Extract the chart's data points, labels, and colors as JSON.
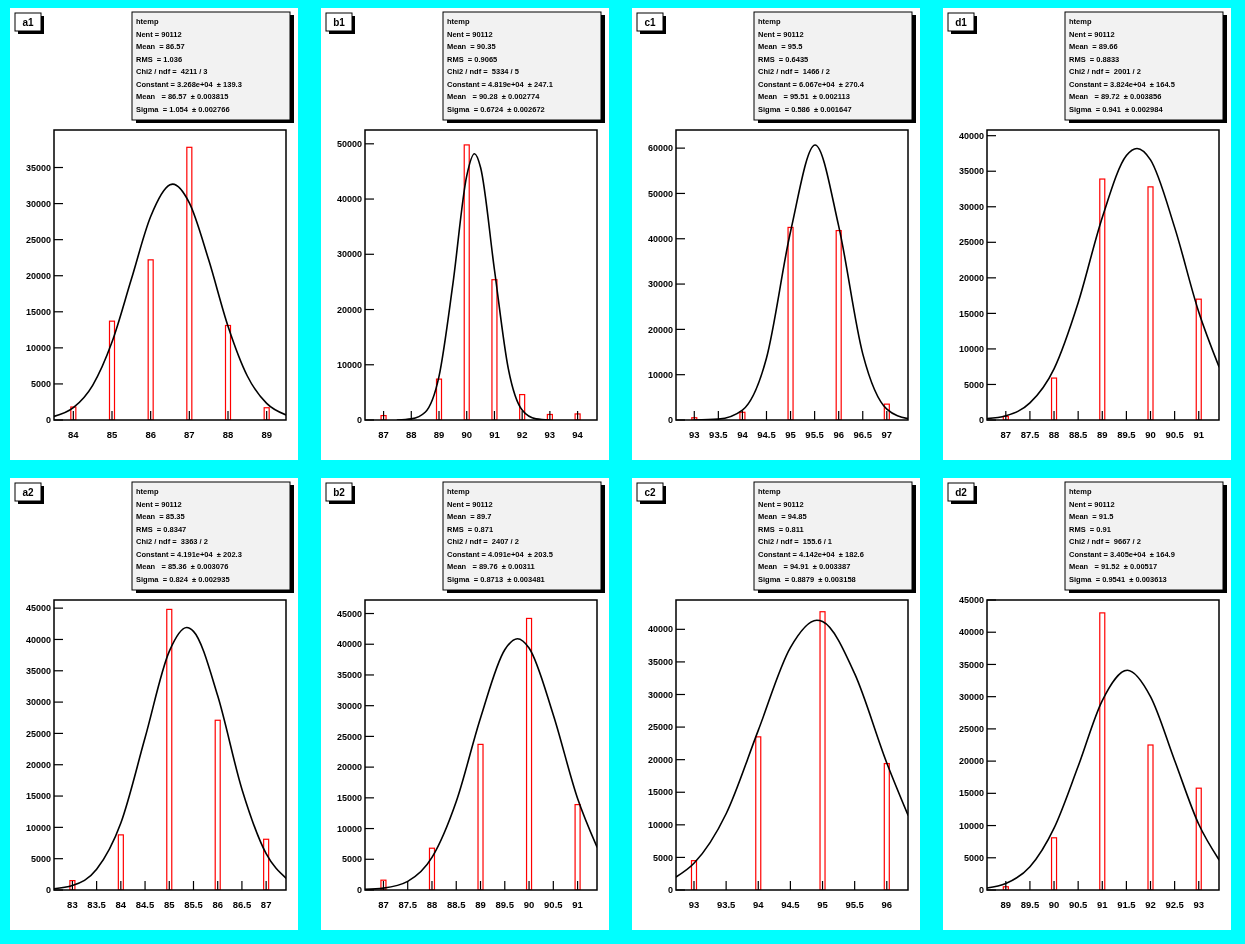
{
  "chart_data": [
    {
      "type": "bar",
      "title": "a1",
      "xlim": [
        83.5,
        89.5
      ],
      "xticks": [
        84,
        85,
        86,
        87,
        88,
        89
      ],
      "ylim": [
        0,
        40200
      ],
      "yticks": [
        0,
        5000,
        10000,
        15000,
        20000,
        25000,
        30000,
        35000
      ],
      "annotations": [
        "htemp",
        "Nent = 90112",
        "Mean  = 86.57",
        "RMS  = 1.036",
        "Chi2 / ndf =  4211 / 3",
        "Constant = 3.268e+04  ± 139.3",
        "Mean   = 86.57  ± 0.003815",
        "Sigma  = 1.054  ± 0.002766"
      ],
      "series": [
        {
          "type": "bar",
          "color": "#ff0000",
          "x": [
            84,
            85,
            86,
            87,
            88,
            89
          ],
          "values": [
            1800,
            13700,
            22200,
            37800,
            13100,
            1700
          ]
        },
        {
          "type": "line",
          "color": "#000000",
          "x": [
            83.5,
            84,
            84.5,
            85,
            85.5,
            86,
            86.5,
            86.57,
            87,
            87.5,
            88,
            88.5,
            89,
            89.5
          ],
          "values": [
            500,
            1700,
            4800,
            10800,
            19500,
            28200,
            32600,
            32700,
            30100,
            22200,
            13000,
            6100,
            2300,
            700
          ]
        }
      ]
    },
    {
      "type": "bar",
      "title": "b1",
      "xlim": [
        86.33,
        94.7
      ],
      "xticks": [
        87,
        88,
        89,
        90,
        91,
        92,
        93,
        94
      ],
      "ylim": [
        0,
        52500
      ],
      "yticks": [
        0,
        10000,
        20000,
        30000,
        40000,
        50000
      ],
      "annotations": [
        "htemp",
        "Nent = 90112",
        "Mean  = 90.35",
        "RMS  = 0.9065",
        "Chi2 / ndf =  5334 / 5",
        "Constant = 4.819e+04  ± 247.1",
        "Mean   = 90.28  ± 0.002774",
        "Sigma  = 0.6724  ± 0.002672"
      ],
      "series": [
        {
          "type": "bar",
          "color": "#ff0000",
          "x": [
            87,
            89,
            90,
            91,
            92,
            93,
            94
          ],
          "values": [
            800,
            7400,
            49800,
            25400,
            4600,
            1000,
            1100
          ]
        },
        {
          "type": "line",
          "color": "#000000",
          "x": [
            87.5,
            88,
            88.5,
            89,
            89.5,
            90,
            90.28,
            90.5,
            91,
            91.5,
            92,
            92.5,
            93
          ],
          "values": [
            0,
            200,
            1400,
            7900,
            24600,
            44200,
            48200,
            45700,
            27200,
            9300,
            1800,
            200,
            0
          ]
        }
      ]
    },
    {
      "type": "bar",
      "title": "c1",
      "xlim": [
        92.62,
        97.44
      ],
      "xticks": [
        93,
        93.5,
        94,
        94.5,
        95,
        95.5,
        96,
        96.5,
        97
      ],
      "ylim": [
        0,
        64000
      ],
      "yticks": [
        0,
        10000,
        20000,
        30000,
        40000,
        50000,
        60000
      ],
      "annotations": [
        "htemp",
        "Nent = 90112",
        "Mean  = 95.5",
        "RMS  = 0.6435",
        "Chi2 / ndf =  1466 / 2",
        "Constant = 6.067e+04  ± 270.4",
        "Mean   = 95.51  ± 0.002113",
        "Sigma  = 0.586  ± 0.001647"
      ],
      "series": [
        {
          "type": "bar",
          "color": "#ff0000",
          "x": [
            93,
            94,
            95,
            96,
            97
          ],
          "values": [
            500,
            1700,
            42500,
            41800,
            3500
          ]
        },
        {
          "type": "line",
          "color": "#000000",
          "x": [
            93,
            93.5,
            94,
            94.5,
            95,
            95.51,
            96,
            96.5,
            97,
            97.44
          ],
          "values": [
            0,
            200,
            2200,
            13700,
            41600,
            60700,
            42800,
            14600,
            2400,
            300
          ]
        }
      ]
    },
    {
      "type": "bar",
      "title": "d1",
      "xlim": [
        86.61,
        91.42
      ],
      "xticks": [
        87,
        87.5,
        88,
        88.5,
        89,
        89.5,
        90,
        90.5,
        91
      ],
      "ylim": [
        0,
        40800
      ],
      "yticks": [
        0,
        5000,
        10000,
        15000,
        20000,
        25000,
        30000,
        35000,
        40000
      ],
      "annotations": [
        "htemp",
        "Nent = 90112",
        "Mean  = 89.66",
        "RMS  = 0.8833",
        "Chi2 / ndf =  2001 / 2",
        "Constant = 3.824e+04  ± 164.5",
        "Mean   = 89.72  ± 0.003856",
        "Sigma  = 0.941  ± 0.002984"
      ],
      "series": [
        {
          "type": "bar",
          "color": "#ff0000",
          "x": [
            87,
            88,
            89,
            90,
            91
          ],
          "values": [
            500,
            5900,
            33900,
            32800,
            17000
          ]
        },
        {
          "type": "line",
          "color": "#000000",
          "x": [
            86.61,
            87,
            87.5,
            88,
            88.5,
            89,
            89.5,
            89.72,
            90,
            90.5,
            91,
            91.42
          ],
          "values": [
            200,
            600,
            2400,
            7200,
            16500,
            28500,
            37200,
            38200,
            36600,
            27100,
            15200,
            7500
          ]
        }
      ]
    },
    {
      "type": "bar",
      "title": "a2",
      "xlim": [
        82.62,
        87.41
      ],
      "xticks": [
        83,
        83.5,
        84,
        84.5,
        85,
        85.5,
        86,
        86.5,
        87
      ],
      "ylim": [
        0,
        46300
      ],
      "yticks": [
        0,
        5000,
        10000,
        15000,
        20000,
        25000,
        30000,
        35000,
        40000,
        45000
      ],
      "annotations": [
        "htemp",
        "Nent = 90112",
        "Mean  = 85.35",
        "RMS  = 0.8347",
        "Chi2 / ndf =  3363 / 2",
        "Constant = 4.191e+04  ± 202.3",
        "Mean   = 85.36  ± 0.003076",
        "Sigma  = 0.824  ± 0.002935"
      ],
      "series": [
        {
          "type": "bar",
          "color": "#ff0000",
          "x": [
            83,
            84,
            85,
            86,
            87
          ],
          "values": [
            1500,
            8800,
            44800,
            27100,
            8100
          ]
        },
        {
          "type": "line",
          "color": "#000000",
          "x": [
            82.62,
            83,
            83.5,
            84,
            84.5,
            85,
            85.36,
            85.5,
            86,
            86.5,
            87,
            87.41
          ],
          "values": [
            200,
            700,
            3300,
            10700,
            24300,
            38100,
            41900,
            41300,
            31000,
            16100,
            5800,
            1900
          ]
        }
      ]
    },
    {
      "type": "bar",
      "title": "b2",
      "xlim": [
        86.62,
        91.4
      ],
      "xticks": [
        87,
        87.5,
        88,
        88.5,
        89,
        89.5,
        90,
        90.5,
        91
      ],
      "ylim": [
        0,
        47200
      ],
      "yticks": [
        0,
        5000,
        10000,
        15000,
        20000,
        25000,
        30000,
        35000,
        40000,
        45000
      ],
      "annotations": [
        "htemp",
        "Nent = 90112",
        "Mean  = 89.7",
        "RMS  = 0.871",
        "Chi2 / ndf =  2407 / 2",
        "Constant = 4.091e+04  ± 203.5",
        "Mean   = 89.76  ± 0.00311",
        "Sigma  = 0.8713  ± 0.003481"
      ],
      "series": [
        {
          "type": "bar",
          "color": "#ff0000",
          "x": [
            87,
            88,
            89,
            90,
            91
          ],
          "values": [
            1600,
            6800,
            23700,
            44200,
            13900
          ]
        },
        {
          "type": "line",
          "color": "#000000",
          "x": [
            86.62,
            87,
            87.5,
            88,
            88.5,
            89,
            89.5,
            89.76,
            90,
            90.5,
            91,
            91.4
          ],
          "values": [
            100,
            300,
            1400,
            5300,
            14400,
            28000,
            39100,
            40900,
            39400,
            28500,
            14900,
            7000
          ]
        }
      ]
    },
    {
      "type": "bar",
      "title": "c2",
      "xlim": [
        92.72,
        96.33
      ],
      "xticks": [
        93,
        93.5,
        94,
        94.5,
        95,
        95.5,
        96
      ],
      "ylim": [
        0,
        44500
      ],
      "yticks": [
        0,
        5000,
        10000,
        15000,
        20000,
        25000,
        30000,
        35000,
        40000
      ],
      "annotations": [
        "htemp",
        "Nent = 90112",
        "Mean  = 94.85",
        "RMS  = 0.811",
        "Chi2 / ndf =  155.6 / 1",
        "Constant = 4.142e+04  ± 182.6",
        "Mean   = 94.91  ± 0.003387",
        "Sigma  = 0.8879  ± 0.003158"
      ],
      "series": [
        {
          "type": "bar",
          "color": "#ff0000",
          "x": [
            93,
            94,
            95,
            96
          ],
          "values": [
            4500,
            23500,
            42700,
            19400
          ]
        },
        {
          "type": "line",
          "color": "#000000",
          "x": [
            92.72,
            93,
            93.5,
            94,
            94.5,
            94.91,
            95,
            95.5,
            96,
            96.33
          ],
          "values": [
            2000,
            4100,
            11700,
            24500,
            37200,
            41400,
            41200,
            33200,
            19500,
            11500
          ]
        }
      ]
    },
    {
      "type": "bar",
      "title": "d2",
      "xlim": [
        88.61,
        93.42
      ],
      "xticks": [
        89,
        89.5,
        90,
        90.5,
        91,
        91.5,
        92,
        92.5,
        93
      ],
      "ylim": [
        0,
        45000
      ],
      "yticks": [
        0,
        5000,
        10000,
        15000,
        20000,
        25000,
        30000,
        35000,
        40000,
        45000
      ],
      "annotations": [
        "htemp",
        "Nent = 90112",
        "Mean  = 91.5",
        "RMS  = 0.91",
        "Chi2 / ndf =  9667 / 2",
        "Constant = 3.405e+04  ± 164.9",
        "Mean   = 91.52  ± 0.00517",
        "Sigma  = 0.9541  ± 0.003613"
      ],
      "series": [
        {
          "type": "bar",
          "color": "#ff0000",
          "x": [
            89,
            90,
            91,
            92,
            93
          ],
          "values": [
            500,
            8100,
            43000,
            22500,
            15800
          ]
        },
        {
          "type": "line",
          "color": "#000000",
          "x": [
            88.61,
            89,
            89.5,
            90,
            90.5,
            91,
            91.52,
            92,
            92.5,
            93,
            93.42
          ],
          "values": [
            300,
            1000,
            3600,
            9600,
            19200,
            29400,
            34100,
            30000,
            20100,
            10200,
            4700
          ]
        }
      ]
    }
  ]
}
